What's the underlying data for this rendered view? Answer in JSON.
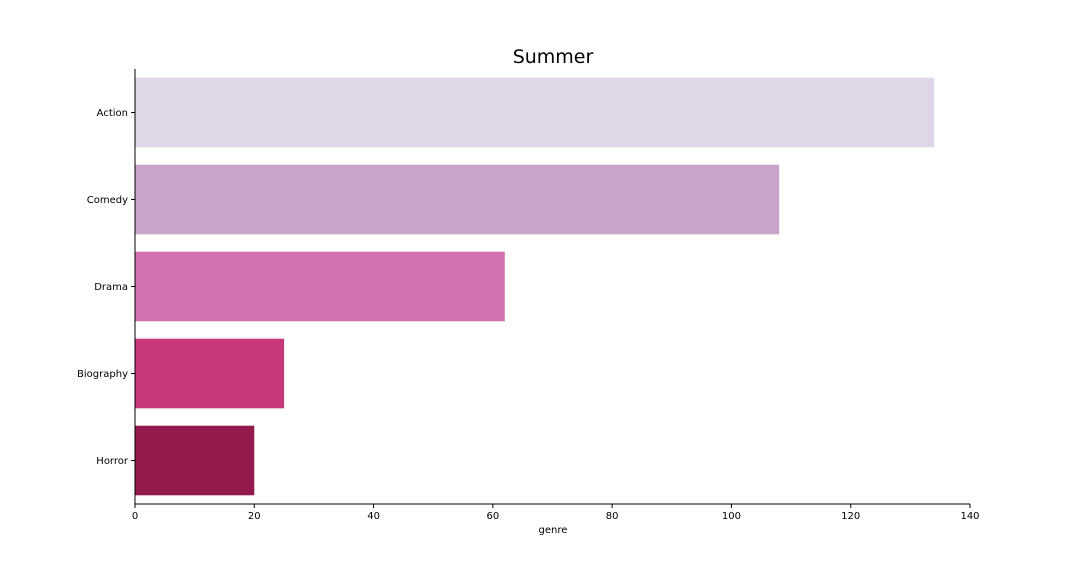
{
  "chart_data": {
    "type": "bar",
    "orientation": "horizontal",
    "title": "Summer",
    "xlabel": "genre",
    "ylabel": "",
    "categories": [
      "Action",
      "Comedy",
      "Drama",
      "Biography",
      "Horror"
    ],
    "values": [
      134,
      108,
      62,
      25,
      20
    ],
    "colors": [
      "#dfd7e8",
      "#c8a5c8",
      "#cf72ad",
      "#c6387a",
      "#941a4e"
    ],
    "xlim": [
      0,
      140
    ],
    "xticks": [
      0,
      20,
      40,
      60,
      80,
      100,
      120,
      140
    ],
    "grid": false,
    "legend": "none"
  }
}
